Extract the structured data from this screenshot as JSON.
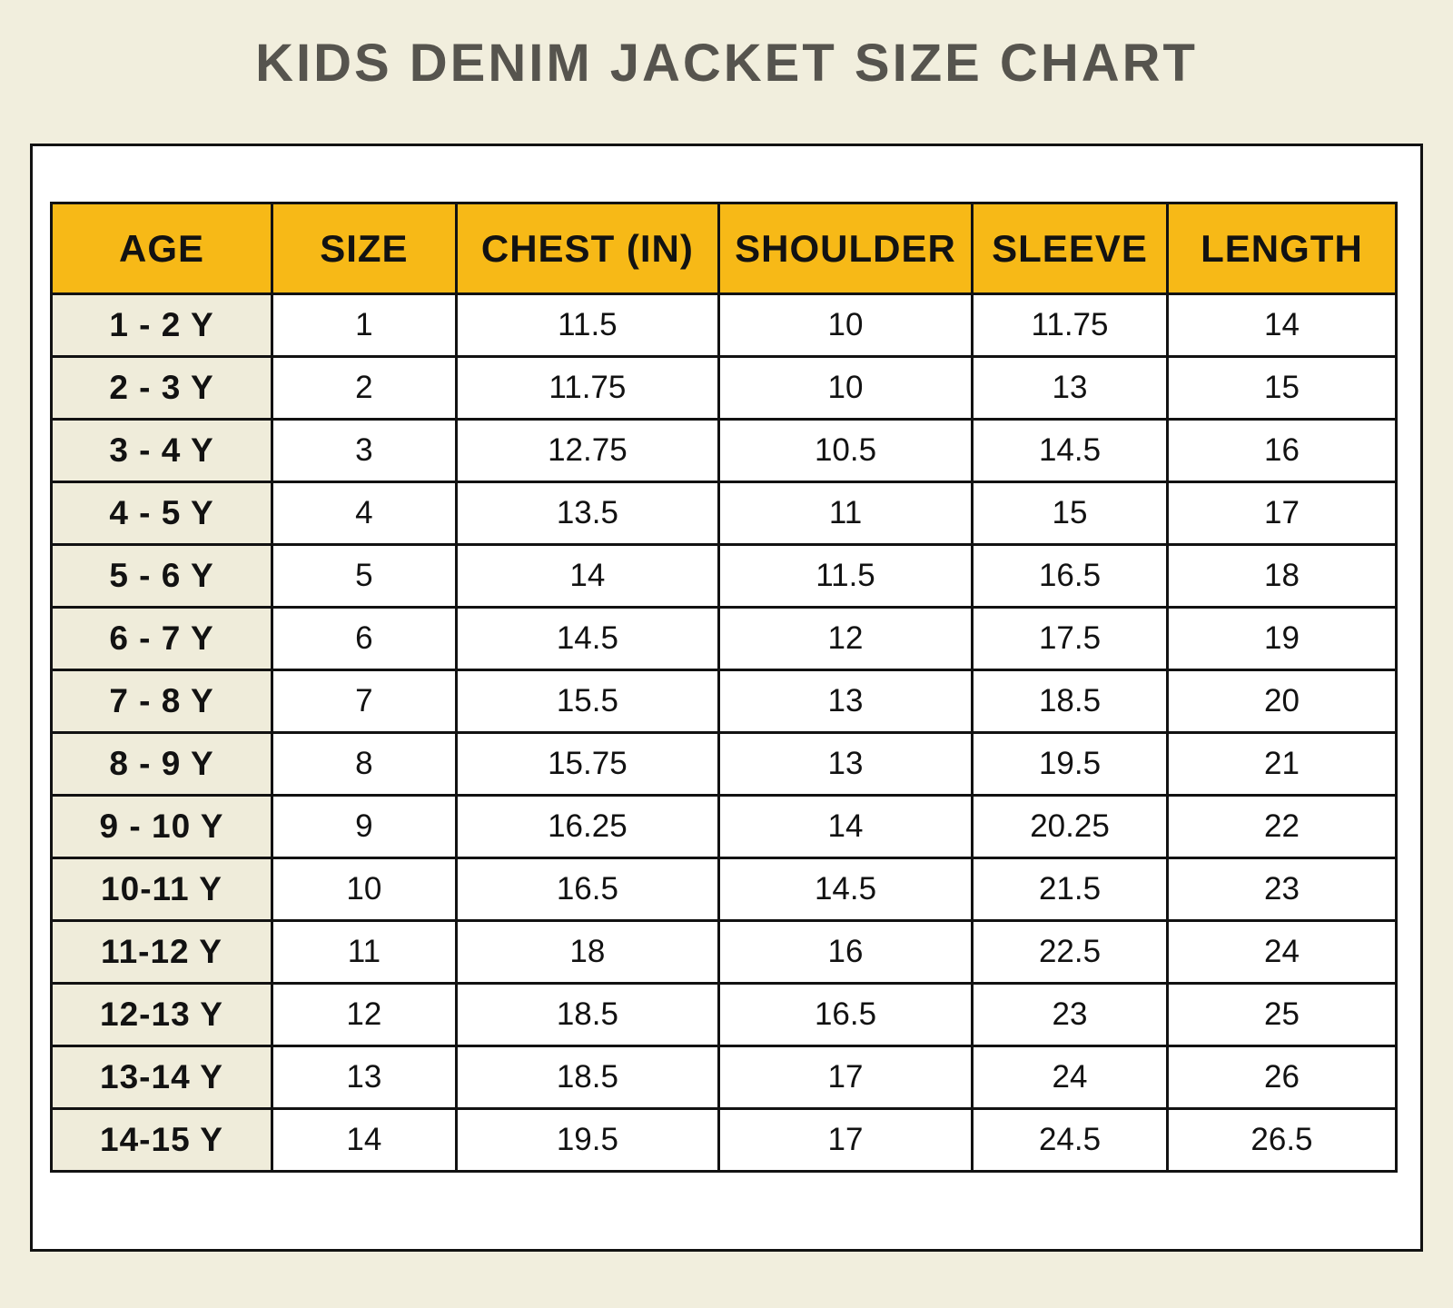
{
  "page": {
    "title": "KIDS DENIM JACKET SIZE CHART",
    "background_color": "#F1EEDD",
    "title_color": "#56544E"
  },
  "table": {
    "header_bg_color": "#F7B917",
    "age_column_bg_color": "#EFECDA",
    "border_color": "#121212",
    "columns": [
      "AGE",
      "SIZE",
      "CHEST (IN)",
      "SHOULDER",
      "SLEEVE",
      "LENGTH"
    ],
    "rows": [
      {
        "age": "1 - 2 Y",
        "size": "1",
        "chest": "11.5",
        "shoulder": "10",
        "sleeve": "11.75",
        "length": "14"
      },
      {
        "age": "2 - 3 Y",
        "size": "2",
        "chest": "11.75",
        "shoulder": "10",
        "sleeve": "13",
        "length": "15"
      },
      {
        "age": "3 - 4 Y",
        "size": "3",
        "chest": "12.75",
        "shoulder": "10.5",
        "sleeve": "14.5",
        "length": "16"
      },
      {
        "age": "4 - 5 Y",
        "size": "4",
        "chest": "13.5",
        "shoulder": "11",
        "sleeve": "15",
        "length": "17"
      },
      {
        "age": "5 - 6 Y",
        "size": "5",
        "chest": "14",
        "shoulder": "11.5",
        "sleeve": "16.5",
        "length": "18"
      },
      {
        "age": "6 - 7 Y",
        "size": "6",
        "chest": "14.5",
        "shoulder": "12",
        "sleeve": "17.5",
        "length": "19"
      },
      {
        "age": "7 - 8 Y",
        "size": "7",
        "chest": "15.5",
        "shoulder": "13",
        "sleeve": "18.5",
        "length": "20"
      },
      {
        "age": "8 - 9 Y",
        "size": "8",
        "chest": "15.75",
        "shoulder": "13",
        "sleeve": "19.5",
        "length": "21"
      },
      {
        "age": "9 - 10 Y",
        "size": "9",
        "chest": "16.25",
        "shoulder": "14",
        "sleeve": "20.25",
        "length": "22"
      },
      {
        "age": "10-11 Y",
        "size": "10",
        "chest": "16.5",
        "shoulder": "14.5",
        "sleeve": "21.5",
        "length": "23"
      },
      {
        "age": "11-12 Y",
        "size": "11",
        "chest": "18",
        "shoulder": "16",
        "sleeve": "22.5",
        "length": "24"
      },
      {
        "age": "12-13 Y",
        "size": "12",
        "chest": "18.5",
        "shoulder": "16.5",
        "sleeve": "23",
        "length": "25"
      },
      {
        "age": "13-14 Y",
        "size": "13",
        "chest": "18.5",
        "shoulder": "17",
        "sleeve": "24",
        "length": "26"
      },
      {
        "age": "14-15 Y",
        "size": "14",
        "chest": "19.5",
        "shoulder": "17",
        "sleeve": "24.5",
        "length": "26.5"
      }
    ]
  },
  "chart_data": {
    "type": "table",
    "title": "KIDS DENIM JACKET SIZE CHART",
    "columns": [
      "AGE",
      "SIZE",
      "CHEST (IN)",
      "SHOULDER",
      "SLEEVE",
      "LENGTH"
    ],
    "rows": [
      [
        "1 - 2 Y",
        1,
        11.5,
        10,
        11.75,
        14
      ],
      [
        "2 - 3 Y",
        2,
        11.75,
        10,
        13,
        15
      ],
      [
        "3 - 4 Y",
        3,
        12.75,
        10.5,
        14.5,
        16
      ],
      [
        "4 - 5 Y",
        4,
        13.5,
        11,
        15,
        17
      ],
      [
        "5 - 6 Y",
        5,
        14,
        11.5,
        16.5,
        18
      ],
      [
        "6 - 7 Y",
        6,
        14.5,
        12,
        17.5,
        19
      ],
      [
        "7 - 8 Y",
        7,
        15.5,
        13,
        18.5,
        20
      ],
      [
        "8 - 9 Y",
        8,
        15.75,
        13,
        19.5,
        21
      ],
      [
        "9 - 10 Y",
        9,
        16.25,
        14,
        20.25,
        22
      ],
      [
        "10-11 Y",
        10,
        16.5,
        14.5,
        21.5,
        23
      ],
      [
        "11-12 Y",
        11,
        18,
        16,
        22.5,
        24
      ],
      [
        "12-13 Y",
        12,
        18.5,
        16.5,
        23,
        25
      ],
      [
        "13-14 Y",
        13,
        18.5,
        17,
        24,
        26
      ],
      [
        "14-15 Y",
        14,
        19.5,
        17,
        24.5,
        26.5
      ]
    ]
  }
}
